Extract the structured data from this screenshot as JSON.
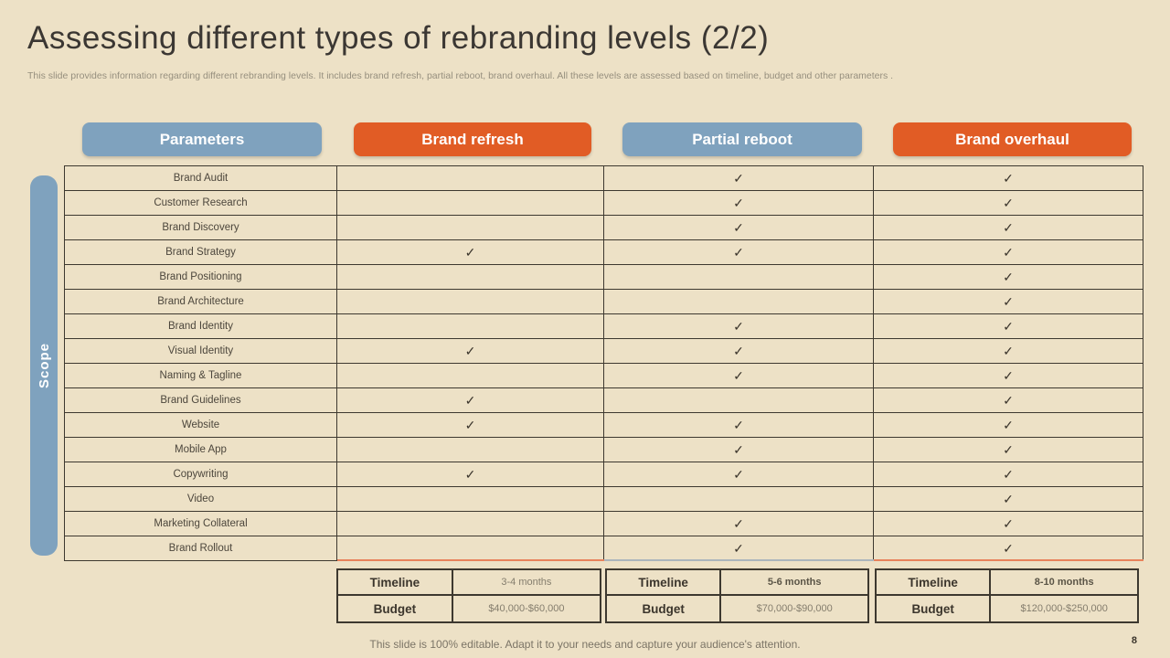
{
  "slide": {
    "title": "Assessing different types of rebranding levels (2/2)",
    "subtitle": "This slide provides information regarding different rebranding levels. It includes brand refresh, partial reboot, brand overhaul. All these levels are assessed based on timeline,  budget and other parameters .",
    "footer_note": "This slide is 100% editable. Adapt it to your needs and capture your audience's attention.",
    "page_number": "8"
  },
  "colors": {
    "background": "#EDE1C6",
    "accent_blue": "#7FA2BE",
    "accent_orange": "#E15C25",
    "table_border": "#3D382F",
    "refresh_underline": "#E8825B",
    "reboot_underline": "#ABB5BC"
  },
  "headers": {
    "parameters": "Parameters",
    "brand_refresh": "Brand refresh",
    "partial_reboot": "Partial reboot",
    "brand_overhaul": "Brand overhaul"
  },
  "scope_label": "Scope",
  "check_glyph": "✓",
  "matrix": {
    "rows": [
      {
        "parameter": "Brand Audit",
        "brand_refresh": false,
        "partial_reboot": true,
        "brand_overhaul": true
      },
      {
        "parameter": "Customer Research",
        "brand_refresh": false,
        "partial_reboot": true,
        "brand_overhaul": true
      },
      {
        "parameter": "Brand Discovery",
        "brand_refresh": false,
        "partial_reboot": true,
        "brand_overhaul": true
      },
      {
        "parameter": "Brand Strategy",
        "brand_refresh": true,
        "partial_reboot": true,
        "brand_overhaul": true
      },
      {
        "parameter": "Brand Positioning",
        "brand_refresh": false,
        "partial_reboot": false,
        "brand_overhaul": true
      },
      {
        "parameter": "Brand Architecture",
        "brand_refresh": false,
        "partial_reboot": false,
        "brand_overhaul": true
      },
      {
        "parameter": "Brand Identity",
        "brand_refresh": false,
        "partial_reboot": true,
        "brand_overhaul": true
      },
      {
        "parameter": "Visual Identity",
        "brand_refresh": true,
        "partial_reboot": true,
        "brand_overhaul": true
      },
      {
        "parameter": "Naming & Tagline",
        "brand_refresh": false,
        "partial_reboot": true,
        "brand_overhaul": true
      },
      {
        "parameter": "Brand Guidelines",
        "brand_refresh": true,
        "partial_reboot": false,
        "brand_overhaul": true
      },
      {
        "parameter": "Website",
        "brand_refresh": true,
        "partial_reboot": true,
        "brand_overhaul": true
      },
      {
        "parameter": "Mobile App",
        "brand_refresh": false,
        "partial_reboot": true,
        "brand_overhaul": true
      },
      {
        "parameter": "Copywriting",
        "brand_refresh": true,
        "partial_reboot": true,
        "brand_overhaul": true
      },
      {
        "parameter": "Video",
        "brand_refresh": false,
        "partial_reboot": false,
        "brand_overhaul": true
      },
      {
        "parameter": "Marketing Collateral",
        "brand_refresh": false,
        "partial_reboot": true,
        "brand_overhaul": true
      },
      {
        "parameter": "Brand Rollout",
        "brand_refresh": false,
        "partial_reboot": true,
        "brand_overhaul": true
      }
    ]
  },
  "summaries": [
    {
      "timeline_label": "Timeline",
      "timeline_value": "3-4 months",
      "budget_label": "Budget",
      "budget_value": "$40,000-$60,000"
    },
    {
      "timeline_label": "Timeline",
      "timeline_value": "5-6 months",
      "budget_label": "Budget",
      "budget_value": "$70,000-$90,000"
    },
    {
      "timeline_label": "Timeline",
      "timeline_value": "8-10 months",
      "budget_label": "Budget",
      "budget_value": "$120,000-$250,000"
    }
  ]
}
